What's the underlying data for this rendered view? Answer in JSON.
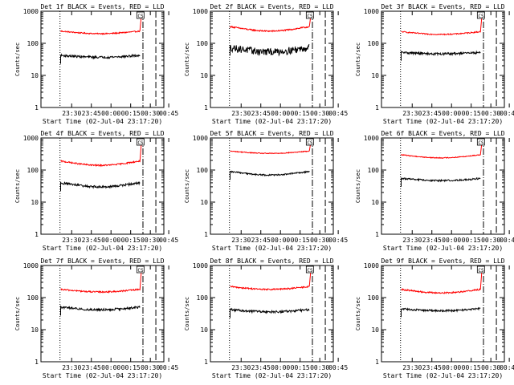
{
  "figure": {
    "ylabel": "Counts/sec",
    "xlabel": "Start Time (02-Jul-04 23:17:20)"
  },
  "chart_data": [
    {
      "type": "line",
      "title": "Det 1f BLACK = Events, RED = LLD",
      "ylabel": "Counts/sec",
      "xlabel": "Start Time (02-Jul-04 23:17:20)",
      "yscale": "log",
      "ylim": [
        1,
        1000
      ],
      "yticks": [
        "1",
        "10",
        "100",
        "1000"
      ],
      "xticks": [
        "23:30",
        "23:45",
        "00:00",
        "00:15",
        "00:30",
        "00:45"
      ],
      "series": [
        {
          "color": "red",
          "level": 240,
          "dip": 40,
          "noise": 0.04
        },
        {
          "color": "black",
          "level": 42,
          "dip": 5,
          "noise": 0.08
        }
      ],
      "box_label": "CS"
    },
    {
      "type": "line",
      "title": "Det 2f BLACK = Events, RED = LLD",
      "ylabel": "Counts/sec",
      "xlabel": "Start Time (02-Jul-04 23:17:20)",
      "yscale": "log",
      "ylim": [
        1,
        1000
      ],
      "yticks": [
        "1",
        "10",
        "100",
        "1000"
      ],
      "xticks": [
        "23:30",
        "23:45",
        "00:00",
        "00:15",
        "00:30",
        "00:45"
      ],
      "series": [
        {
          "color": "red",
          "level": 330,
          "dip": 90,
          "noise": 0.05
        },
        {
          "color": "black",
          "level": 75,
          "dip": 20,
          "noise": 0.25
        }
      ],
      "box_label": "CS"
    },
    {
      "type": "line",
      "title": "Det 3f BLACK = Events, RED = LLD",
      "ylabel": "Counts/sec",
      "xlabel": "Start Time (02-Jul-04 23:17:20)",
      "yscale": "log",
      "ylim": [
        1,
        1000
      ],
      "yticks": [
        "1",
        "10",
        "100",
        "1000"
      ],
      "xticks": [
        "23:30",
        "23:45",
        "00:00",
        "00:15",
        "00:30",
        "00:45"
      ],
      "series": [
        {
          "color": "red",
          "level": 230,
          "dip": 40,
          "noise": 0.04
        },
        {
          "color": "black",
          "level": 52,
          "dip": 5,
          "noise": 0.08
        }
      ],
      "box_label": "CS"
    },
    {
      "type": "line",
      "title": "Det 4f BLACK = Events, RED = LLD",
      "ylabel": "Counts/sec",
      "xlabel": "Start Time (02-Jul-04 23:17:20)",
      "yscale": "log",
      "ylim": [
        1,
        1000
      ],
      "yticks": [
        "1",
        "10",
        "100",
        "1000"
      ],
      "xticks": [
        "23:30",
        "23:45",
        "00:00",
        "00:15",
        "00:30",
        "00:45"
      ],
      "series": [
        {
          "color": "red",
          "level": 190,
          "dip": 50,
          "noise": 0.05
        },
        {
          "color": "black",
          "level": 40,
          "dip": 10,
          "noise": 0.08
        }
      ],
      "box_label": "CS"
    },
    {
      "type": "line",
      "title": "Det 5f BLACK = Events, RED = LLD",
      "ylabel": "Counts/sec",
      "xlabel": "Start Time (02-Jul-04 23:17:20)",
      "yscale": "log",
      "ylim": [
        1,
        1000
      ],
      "yticks": [
        "1",
        "10",
        "100",
        "1000"
      ],
      "xticks": [
        "23:30",
        "23:45",
        "00:00",
        "00:15",
        "00:30",
        "00:45"
      ],
      "series": [
        {
          "color": "red",
          "level": 390,
          "dip": 60,
          "noise": 0.03
        },
        {
          "color": "black",
          "level": 90,
          "dip": 20,
          "noise": 0.05
        }
      ],
      "box_label": "CS"
    },
    {
      "type": "line",
      "title": "Det 6f BLACK = Events, RED = LLD",
      "ylabel": "Counts/sec",
      "xlabel": "Start Time (02-Jul-04 23:17:20)",
      "yscale": "log",
      "ylim": [
        1,
        1000
      ],
      "yticks": [
        "1",
        "10",
        "100",
        "1000"
      ],
      "xticks": [
        "23:30",
        "23:45",
        "00:00",
        "00:15",
        "00:30",
        "00:45"
      ],
      "series": [
        {
          "color": "red",
          "level": 300,
          "dip": 60,
          "noise": 0.03
        },
        {
          "color": "black",
          "level": 55,
          "dip": 8,
          "noise": 0.06
        }
      ],
      "box_label": "CS"
    },
    {
      "type": "line",
      "title": "Det 7f BLACK = Events, RED = LLD",
      "ylabel": "Counts/sec",
      "xlabel": "Start Time (02-Jul-04 23:17:20)",
      "yscale": "log",
      "ylim": [
        1,
        1000
      ],
      "yticks": [
        "1",
        "10",
        "100",
        "1000"
      ],
      "xticks": [
        "23:30",
        "23:45",
        "00:00",
        "00:15",
        "00:30",
        "00:45"
      ],
      "series": [
        {
          "color": "red",
          "level": 180,
          "dip": 30,
          "noise": 0.05
        },
        {
          "color": "black",
          "level": 50,
          "dip": 8,
          "noise": 0.08
        }
      ],
      "box_label": "CS"
    },
    {
      "type": "line",
      "title": "Det 8f BLACK = Events, RED = LLD",
      "ylabel": "Counts/sec",
      "xlabel": "Start Time (02-Jul-04 23:17:20)",
      "yscale": "log",
      "ylim": [
        1,
        1000
      ],
      "yticks": [
        "1",
        "10",
        "100",
        "1000"
      ],
      "xticks": [
        "23:30",
        "23:45",
        "00:00",
        "00:15",
        "00:30",
        "00:45"
      ],
      "series": [
        {
          "color": "red",
          "level": 220,
          "dip": 40,
          "noise": 0.05
        },
        {
          "color": "black",
          "level": 42,
          "dip": 6,
          "noise": 0.08
        }
      ],
      "box_label": "CS"
    },
    {
      "type": "line",
      "title": "Det 9f BLACK = Events, RED = LLD",
      "ylabel": "Counts/sec",
      "xlabel": "Start Time (02-Jul-04 23:17:20)",
      "yscale": "log",
      "ylim": [
        1,
        1000
      ],
      "yticks": [
        "1",
        "10",
        "100",
        "1000"
      ],
      "xticks": [
        "23:30",
        "23:45",
        "00:00",
        "00:15",
        "00:30",
        "00:45"
      ],
      "series": [
        {
          "color": "red",
          "level": 180,
          "dip": 40,
          "noise": 0.05
        },
        {
          "color": "black",
          "level": 45,
          "dip": 6,
          "noise": 0.07
        }
      ],
      "box_label": "CS"
    }
  ],
  "colors": {
    "events": "#000000",
    "lld": "#ff0000",
    "axes": "#000000"
  }
}
